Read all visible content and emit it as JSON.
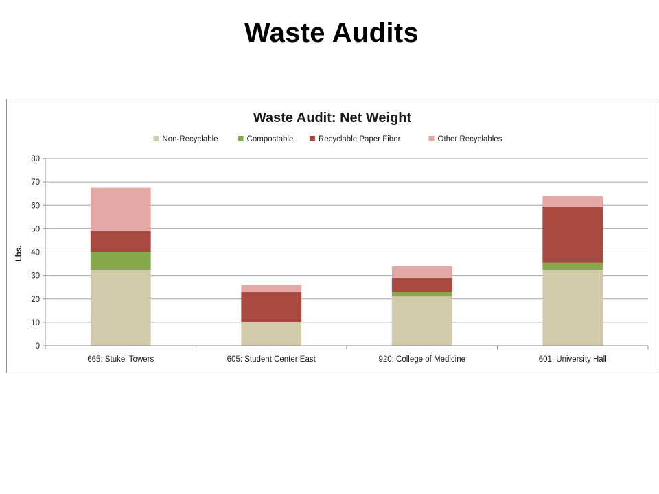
{
  "slide": {
    "title": "Waste Audits"
  },
  "chart_data": {
    "type": "bar",
    "stacked": true,
    "title": "Waste Audit: Net Weight",
    "xlabel": "",
    "ylabel": "Lbs.",
    "ylim": [
      0,
      80
    ],
    "yticks": [
      0,
      10,
      20,
      30,
      40,
      50,
      60,
      70,
      80
    ],
    "grid": true,
    "legend_position": "top",
    "categories": [
      "665: Stukel Towers",
      "605: Student Center East",
      "920: College of Medicine",
      "601: University Hall"
    ],
    "series": [
      {
        "name": "Non-Recyclable",
        "color": "#d2cbab",
        "values": [
          32.5,
          10,
          21,
          32.5
        ]
      },
      {
        "name": "Compostable",
        "color": "#86a94b",
        "values": [
          7.5,
          0,
          2,
          3
        ]
      },
      {
        "name": "Recyclable Paper Fiber",
        "color": "#a84942",
        "values": [
          9,
          13,
          6,
          24
        ]
      },
      {
        "name": "Other Recyclables",
        "color": "#e3a7a6",
        "values": [
          18.5,
          3,
          5,
          4.5
        ]
      }
    ]
  }
}
